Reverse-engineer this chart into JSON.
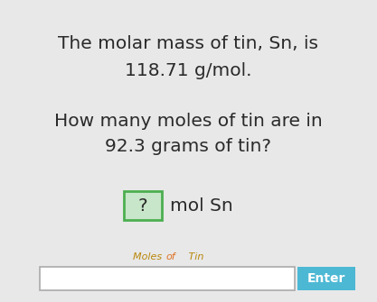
{
  "bg_color": "#e8e8e8",
  "line1": "The molar mass of tin, Sn, is",
  "line2": "118.71 g/mol.",
  "line3": "How many moles of tin are in",
  "line4": "92.3 grams of tin?",
  "answer_box_text": "?",
  "answer_box_bg": "#c8e6c9",
  "answer_box_border": "#4caf50",
  "answer_suffix": " mol Sn",
  "label_text": "Moles of Tin",
  "label_color_moles": "#b8860b",
  "label_color_of": "#e07020",
  "label_color_tin": "#b8860b",
  "input_box_color": "#ffffff",
  "input_box_border": "#aaaaaa",
  "enter_btn_color": "#4db8d4",
  "enter_btn_text": "Enter",
  "enter_btn_text_color": "#ffffff",
  "main_text_color": "#2a2a2a",
  "main_fontsize": 14.5,
  "suffix_fontsize": 14.5,
  "label_fontsize": 8.0,
  "btn_fontsize": 10
}
